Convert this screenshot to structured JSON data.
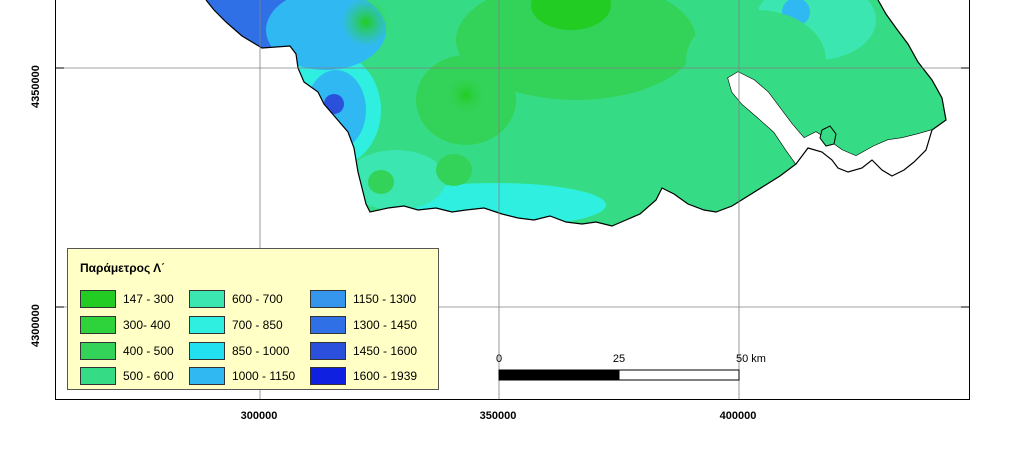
{
  "map": {
    "x_ticks": [
      "300000",
      "350000",
      "400000"
    ],
    "y_ticks": [
      "4350000",
      "4300000"
    ]
  },
  "legend": {
    "title": "Παράμετρος Λ΄",
    "items": [
      {
        "label": "147 - 300",
        "color": "#22cc22"
      },
      {
        "label": "300- 400",
        "color": "#2ed23a"
      },
      {
        "label": "400 - 500",
        "color": "#33d35a"
      },
      {
        "label": "500 - 600",
        "color": "#36dc85"
      },
      {
        "label": "600 - 700",
        "color": "#3ce6b0"
      },
      {
        "label": "700 - 850",
        "color": "#2ff0e0"
      },
      {
        "label": "850 - 1000",
        "color": "#22e0f0"
      },
      {
        "label": "1000 - 1150",
        "color": "#30b8f2"
      },
      {
        "label": "1150 - 1300",
        "color": "#3696ee"
      },
      {
        "label": "1300 - 1450",
        "color": "#3070e6"
      },
      {
        "label": "1450 - 1600",
        "color": "#2a50dc"
      },
      {
        "label": "1600 - 1939",
        "color": "#1020e0"
      }
    ]
  },
  "scale_bar": {
    "labels": [
      "0",
      "25",
      "50 km"
    ]
  }
}
